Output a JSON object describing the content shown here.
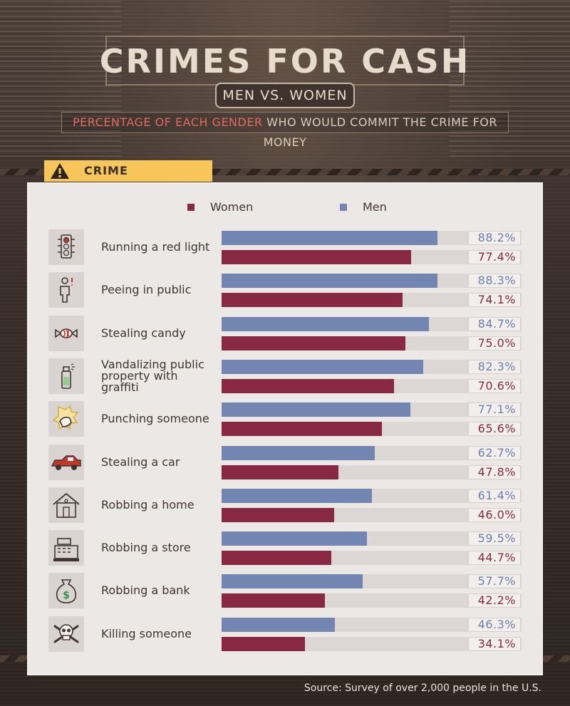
{
  "header": {
    "title": "CRIMES FOR CASH",
    "subtitle": "MEN VS. WOMEN",
    "description_highlight": "PERCENTAGE OF EACH GENDER",
    "description_rest": " WHO WOULD COMMIT THE CRIME FOR MONEY"
  },
  "section_label": "CRIME",
  "source": "Source: Survey of over 2,000 people in the U.S.",
  "colors": {
    "women": "#882843",
    "men": "#7386b2",
    "track": "#dcd7d5",
    "tab": "#f6c65b"
  },
  "chart_data": {
    "type": "bar",
    "orientation": "horizontal",
    "categories": [
      "Running a red light",
      "Peeing in public",
      "Stealing candy",
      "Vandalizing public property with graffiti",
      "Punching someone",
      "Stealing a car",
      "Robbing a home",
      "Robbing a store",
      "Robbing a bank",
      "Killing someone"
    ],
    "category_icons": [
      "traffic-light-icon",
      "person-peeing-icon",
      "candy-icon",
      "spray-paint-icon",
      "punch-icon",
      "car-icon",
      "house-icon",
      "cash-register-icon",
      "money-bag-icon",
      "skull-crossbones-icon"
    ],
    "series": [
      {
        "name": "Men",
        "values": [
          88.2,
          88.3,
          84.7,
          82.3,
          77.1,
          62.7,
          61.4,
          59.5,
          57.7,
          46.3
        ]
      },
      {
        "name": "Women",
        "values": [
          77.4,
          74.1,
          75.0,
          70.6,
          65.6,
          47.8,
          46.0,
          44.7,
          42.2,
          34.1
        ]
      }
    ],
    "value_labels": {
      "Men": [
        "88.2%",
        "88.3%",
        "84.7%",
        "82.3%",
        "77.1%",
        "62.7%",
        "61.4%",
        "59.5%",
        "57.7%",
        "46.3%"
      ],
      "Women": [
        "77.4%",
        "74.1%",
        "75.0%",
        "70.6%",
        "65.6%",
        "47.8%",
        "46.0%",
        "44.7%",
        "42.2%",
        "34.1%"
      ]
    },
    "legend": [
      {
        "name": "Women"
      },
      {
        "name": "Men"
      }
    ],
    "legend_position": "top-center",
    "xlim": [
      0,
      100
    ],
    "title": "CRIMES FOR CASH",
    "subtitle": "MEN VS. WOMEN",
    "xlabel": "",
    "ylabel": "",
    "grid": false
  }
}
